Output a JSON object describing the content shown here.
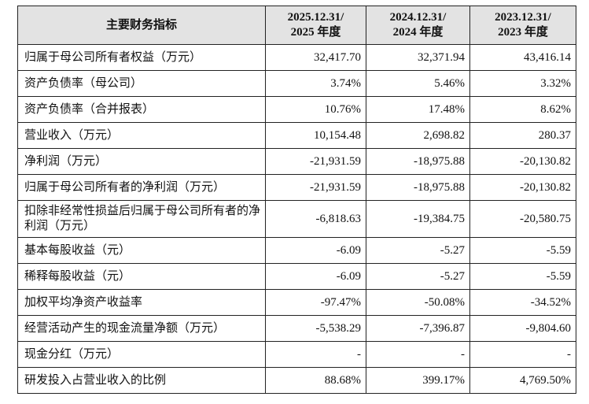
{
  "table": {
    "header": [
      [
        "主要财务指标"
      ],
      [
        "2025.12.31/",
        "2025 年度"
      ],
      [
        "2024.12.31/",
        "2024 年度"
      ],
      [
        "2023.12.31/",
        "2023 年度"
      ]
    ],
    "rows": [
      [
        "归属于母公司所有者权益（万元）",
        "32,417.70",
        "32,371.94",
        "43,416.14"
      ],
      [
        "资产负债率（母公司）",
        "3.74%",
        "5.46%",
        "3.32%"
      ],
      [
        "资产负债率（合并报表）",
        "10.76%",
        "17.48%",
        "8.62%"
      ],
      [
        "营业收入（万元）",
        "10,154.48",
        "2,698.82",
        "280.37"
      ],
      [
        "净利润（万元）",
        "-21,931.59",
        "-18,975.88",
        "-20,130.82"
      ],
      [
        "归属于母公司所有者的净利润（万元）",
        "-21,931.59",
        "-18,975.88",
        "-20,130.82"
      ],
      [
        "扣除非经常性损益后归属于母公司所有者的净利润（万元）",
        "-6,818.63",
        "-19,384.75",
        "-20,580.75"
      ],
      [
        "基本每股收益（元）",
        "-6.09",
        "-5.27",
        "-5.59"
      ],
      [
        "稀释每股收益（元）",
        "-6.09",
        "-5.27",
        "-5.59"
      ],
      [
        "加权平均净资产收益率",
        "-97.47%",
        "-50.08%",
        "-34.52%"
      ],
      [
        "经营活动产生的现金流量净额（万元）",
        "-5,538.29",
        "-7,396.87",
        "-9,804.60"
      ],
      [
        "现金分红（万元）",
        "-",
        "-",
        "-"
      ],
      [
        "研发投入占营业收入的比例",
        "88.68%",
        "399.17%",
        "4,769.50%"
      ]
    ]
  }
}
